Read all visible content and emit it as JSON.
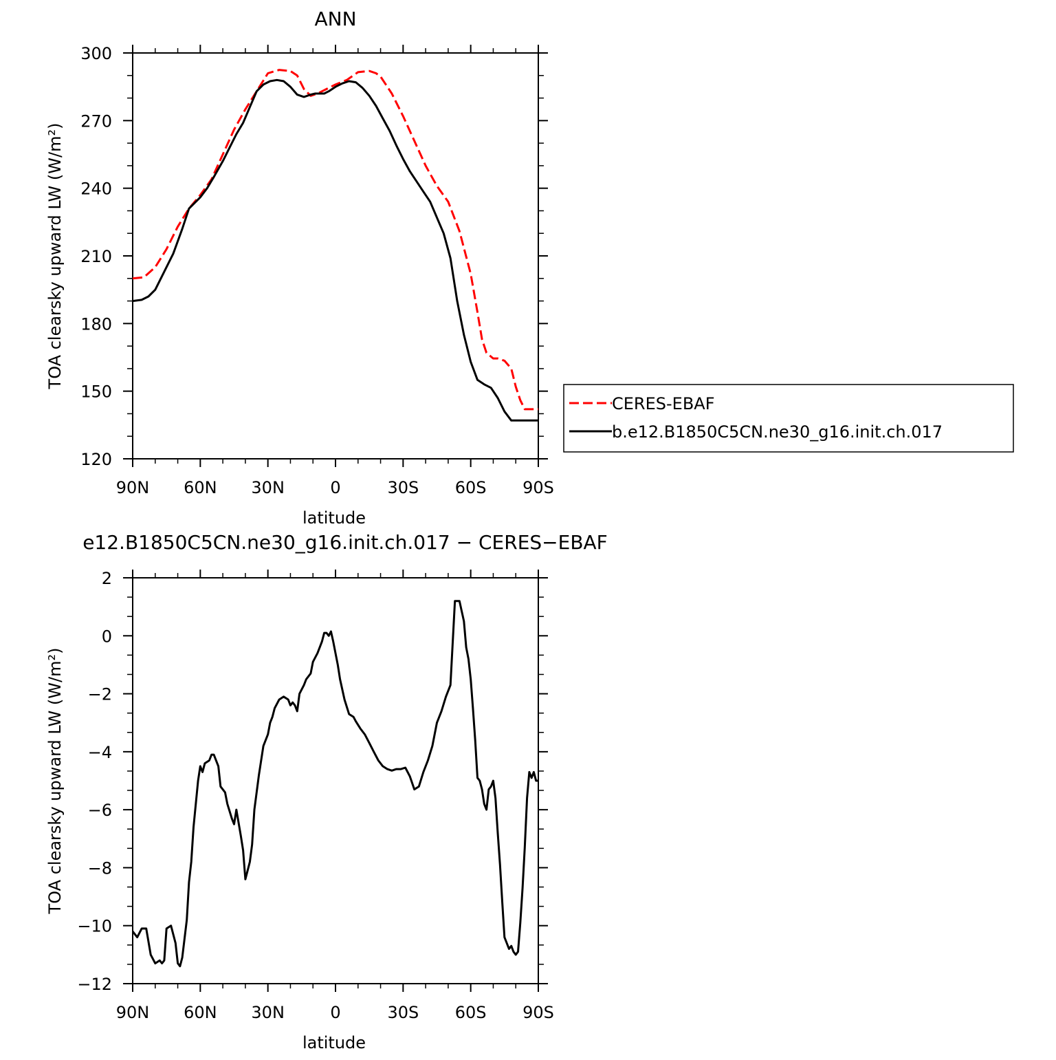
{
  "chart_data": [
    {
      "type": "line",
      "title": "ANN",
      "xlabel": "latitude",
      "ylabel": "TOA clearsky upward LW (W/m²)",
      "x_ticks": [
        {
          "lat": 90,
          "label": "90N"
        },
        {
          "lat": 60,
          "label": "60N"
        },
        {
          "lat": 30,
          "label": "30N"
        },
        {
          "lat": 0,
          "label": "0"
        },
        {
          "lat": -30,
          "label": "30S"
        },
        {
          "lat": -60,
          "label": "60S"
        },
        {
          "lat": -90,
          "label": "90S"
        }
      ],
      "y_ticks": [
        "300",
        "270",
        "240",
        "210",
        "180",
        "150",
        "120"
      ],
      "xlim": [
        90,
        -90
      ],
      "ylim": [
        120,
        300
      ],
      "grid": false,
      "legend_position": "right",
      "series": [
        {
          "name": "CERES-EBAF",
          "color": "#ff0000",
          "dash": "dashed",
          "x": [
            90,
            85,
            80,
            75,
            70,
            65,
            60,
            55,
            50,
            45,
            40,
            35,
            30,
            25,
            20,
            17,
            14,
            11,
            8,
            5,
            0,
            -5,
            -10,
            -15,
            -18,
            -20,
            -25,
            -30,
            -35,
            -40,
            -45,
            -50,
            -55,
            -60,
            -63,
            -65,
            -67,
            -70,
            -72,
            -75,
            -78,
            -80,
            -82,
            -84,
            -86,
            -88,
            -90
          ],
          "y": [
            200,
            200.5,
            205,
            213,
            223,
            231,
            237,
            244,
            255,
            266,
            275,
            283,
            291,
            292.5,
            292,
            290,
            284,
            281,
            282,
            283.5,
            286,
            288,
            291.5,
            292,
            291,
            289.5,
            282,
            272,
            261,
            250,
            241,
            234,
            221,
            202,
            185,
            173,
            167,
            164.5,
            164.5,
            163.5,
            160,
            152,
            146,
            142,
            142,
            142,
            142
          ]
        },
        {
          "name": "b.e12.B1850C5CN.ne30_g16.init.ch.017",
          "color": "#000000",
          "dash": "solid",
          "x": [
            90,
            86,
            83,
            80,
            76,
            72,
            68,
            65,
            62,
            60,
            57,
            54,
            50,
            47,
            44,
            41,
            38,
            35,
            32,
            29,
            26,
            23,
            20,
            17,
            14,
            11,
            9,
            7,
            5,
            3,
            0,
            -3,
            -6,
            -9,
            -12,
            -15,
            -18,
            -21,
            -24,
            -27,
            -30,
            -33,
            -36,
            -39,
            -42,
            -45,
            -48,
            -51,
            -54,
            -57,
            -60,
            -63,
            -66,
            -69,
            -72,
            -75,
            -78,
            -80,
            -82,
            -84,
            -86,
            -88,
            -90
          ],
          "y": [
            190,
            190.5,
            192,
            195,
            203,
            211,
            222,
            231,
            234,
            236,
            240,
            245,
            252,
            258,
            264,
            269,
            276,
            283,
            286,
            287.5,
            288,
            287.5,
            285,
            281.5,
            280.5,
            281.5,
            282,
            282,
            282,
            283,
            285,
            286.5,
            287.5,
            287,
            284.5,
            281,
            276.5,
            271,
            265.5,
            259,
            253,
            247.5,
            243,
            238.5,
            234,
            227,
            220,
            209,
            190,
            175,
            163,
            155,
            153,
            151.5,
            147,
            141,
            137,
            137,
            137,
            137,
            137,
            137,
            137
          ]
        }
      ]
    },
    {
      "type": "line",
      "title": "e12.B1850C5CN.ne30_g16.init.ch.017 − CERES−EBAF",
      "xlabel": "latitude",
      "ylabel": "TOA clearsky upward LW (W/m²)",
      "x_ticks": [
        {
          "lat": 90,
          "label": "90N"
        },
        {
          "lat": 60,
          "label": "60N"
        },
        {
          "lat": 30,
          "label": "30N"
        },
        {
          "lat": 0,
          "label": "0"
        },
        {
          "lat": -30,
          "label": "30S"
        },
        {
          "lat": -60,
          "label": "60S"
        },
        {
          "lat": -90,
          "label": "90S"
        }
      ],
      "y_ticks": [
        "2",
        "0",
        "−2",
        "−4",
        "−6",
        "−8",
        "−10",
        "−12"
      ],
      "xlim": [
        90,
        -90
      ],
      "ylim": [
        -12,
        2
      ],
      "grid": false,
      "series": [
        {
          "color": "#000000",
          "dash": "solid",
          "x": [
            90,
            88,
            86,
            84,
            82,
            80,
            78,
            77,
            76,
            75,
            73,
            71,
            70,
            69,
            68,
            66,
            65,
            64,
            63,
            61,
            60,
            59,
            58,
            56,
            55,
            54,
            52,
            51,
            49,
            48,
            46,
            45,
            44,
            42,
            41,
            40,
            38,
            37,
            36,
            34,
            32,
            30,
            29,
            28,
            27,
            25,
            23,
            21,
            20,
            19,
            18,
            17,
            16,
            14,
            13,
            11,
            10,
            8,
            6,
            5,
            4,
            3,
            2,
            1,
            0,
            -1,
            -2,
            -4,
            -6,
            -8,
            -9,
            -11,
            -13,
            -15,
            -17,
            -19,
            -21,
            -23,
            -25,
            -27,
            -29,
            -31,
            -33,
            -35,
            -37,
            -39,
            -41,
            -43,
            -45,
            -47,
            -49,
            -51,
            -53,
            -55,
            -57,
            -58,
            -59,
            -60,
            -61,
            -62,
            -63,
            -64,
            -65,
            -66,
            -67,
            -68,
            -69,
            -70,
            -71,
            -72,
            -73,
            -74,
            -75,
            -76,
            -77,
            -78,
            -79,
            -80,
            -81,
            -82,
            -83,
            -84,
            -85,
            -86,
            -87,
            -88,
            -89,
            -90
          ],
          "y": [
            -10.2,
            -10.4,
            -10.1,
            -10.1,
            -11.0,
            -11.3,
            -11.2,
            -11.3,
            -11.2,
            -10.1,
            -10.0,
            -10.6,
            -11.3,
            -11.4,
            -11.1,
            -9.8,
            -8.5,
            -7.8,
            -6.6,
            -5.0,
            -4.5,
            -4.7,
            -4.4,
            -4.3,
            -4.1,
            -4.1,
            -4.5,
            -5.2,
            -5.4,
            -5.8,
            -6.3,
            -6.5,
            -6.0,
            -6.9,
            -7.4,
            -8.4,
            -7.8,
            -7.2,
            -6.0,
            -4.8,
            -3.8,
            -3.4,
            -3.0,
            -2.8,
            -2.5,
            -2.2,
            -2.1,
            -2.2,
            -2.4,
            -2.3,
            -2.4,
            -2.6,
            -2.0,
            -1.7,
            -1.5,
            -1.3,
            -0.9,
            -0.6,
            -0.2,
            0.1,
            0.1,
            0.0,
            0.15,
            -0.2,
            -0.6,
            -1.0,
            -1.5,
            -2.2,
            -2.7,
            -2.8,
            -2.95,
            -3.2,
            -3.4,
            -3.7,
            -4.0,
            -4.3,
            -4.5,
            -4.6,
            -4.65,
            -4.6,
            -4.6,
            -4.55,
            -4.85,
            -5.3,
            -5.2,
            -4.7,
            -4.3,
            -3.8,
            -3.0,
            -2.6,
            -2.1,
            -1.7,
            1.2,
            1.2,
            0.5,
            -0.4,
            -0.8,
            -1.5,
            -2.5,
            -3.6,
            -4.9,
            -5.0,
            -5.3,
            -5.8,
            -6.0,
            -5.3,
            -5.2,
            -5.0,
            -5.6,
            -6.8,
            -7.9,
            -9.2,
            -10.4,
            -10.6,
            -10.8,
            -10.7,
            -10.9,
            -11.0,
            -10.9,
            -9.9,
            -8.7,
            -7.3,
            -5.6,
            -4.7,
            -4.9,
            -4.7,
            -5.0,
            -5.0
          ]
        }
      ]
    }
  ]
}
